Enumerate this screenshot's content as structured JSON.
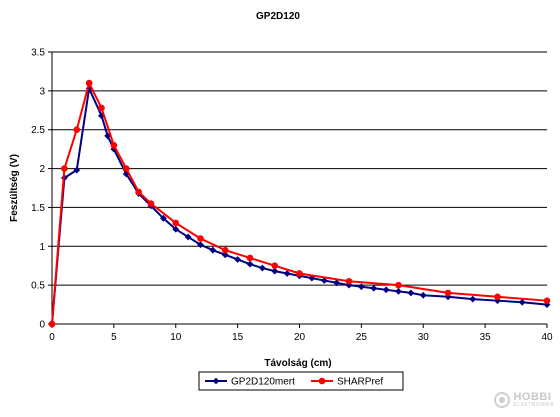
{
  "chart_data": {
    "type": "line",
    "title": "GP2D120",
    "xlabel": "Távolság (cm)",
    "ylabel": "Feszültség (V)",
    "xlim": [
      0,
      40
    ],
    "ylim": [
      0,
      3.5
    ],
    "xticks": [
      0,
      5,
      10,
      15,
      20,
      25,
      30,
      35,
      40
    ],
    "yticks": [
      0,
      0.5,
      1,
      1.5,
      2,
      2.5,
      3,
      3.5
    ],
    "xtick_labels": [
      "0",
      "5",
      "10",
      "15",
      "20",
      "25",
      "30",
      "35",
      "40"
    ],
    "ytick_labels": [
      "0",
      "0.5",
      "1",
      "1.5",
      "2",
      "2.5",
      "3",
      "3.5"
    ],
    "grid": "horizontal",
    "legend_position": "bottom-center",
    "series": [
      {
        "name": "GP2D120mert",
        "color": "#000080",
        "marker": "diamond",
        "x": [
          0,
          1,
          2,
          3,
          4,
          4.5,
          5,
          6,
          7,
          8,
          9,
          10,
          11,
          12,
          13,
          14,
          15,
          16,
          17,
          18,
          19,
          20,
          21,
          22,
          23,
          24,
          25,
          26,
          27,
          28,
          29,
          30,
          32,
          34,
          36,
          38,
          40
        ],
        "y": [
          0,
          1.88,
          1.98,
          3.03,
          2.68,
          2.42,
          2.25,
          1.93,
          1.68,
          1.52,
          1.36,
          1.22,
          1.12,
          1.02,
          0.95,
          0.89,
          0.83,
          0.77,
          0.72,
          0.68,
          0.65,
          0.62,
          0.59,
          0.56,
          0.53,
          0.5,
          0.48,
          0.46,
          0.44,
          0.42,
          0.4,
          0.37,
          0.35,
          0.32,
          0.3,
          0.28,
          0.25
        ]
      },
      {
        "name": "SHARPref",
        "color": "#ff0000",
        "marker": "circle",
        "x": [
          0,
          1,
          2,
          3,
          4,
          5,
          6,
          7,
          8,
          10,
          12,
          14,
          16,
          18,
          20,
          24,
          28,
          32,
          36,
          40
        ],
        "y": [
          0,
          2.0,
          2.5,
          3.1,
          2.78,
          2.3,
          2.0,
          1.7,
          1.55,
          1.3,
          1.1,
          0.95,
          0.85,
          0.75,
          0.65,
          0.55,
          0.5,
          0.4,
          0.35,
          0.3
        ]
      }
    ]
  },
  "watermark": {
    "main": "HOBBI",
    "sub": "ELEKTRONIKA"
  }
}
